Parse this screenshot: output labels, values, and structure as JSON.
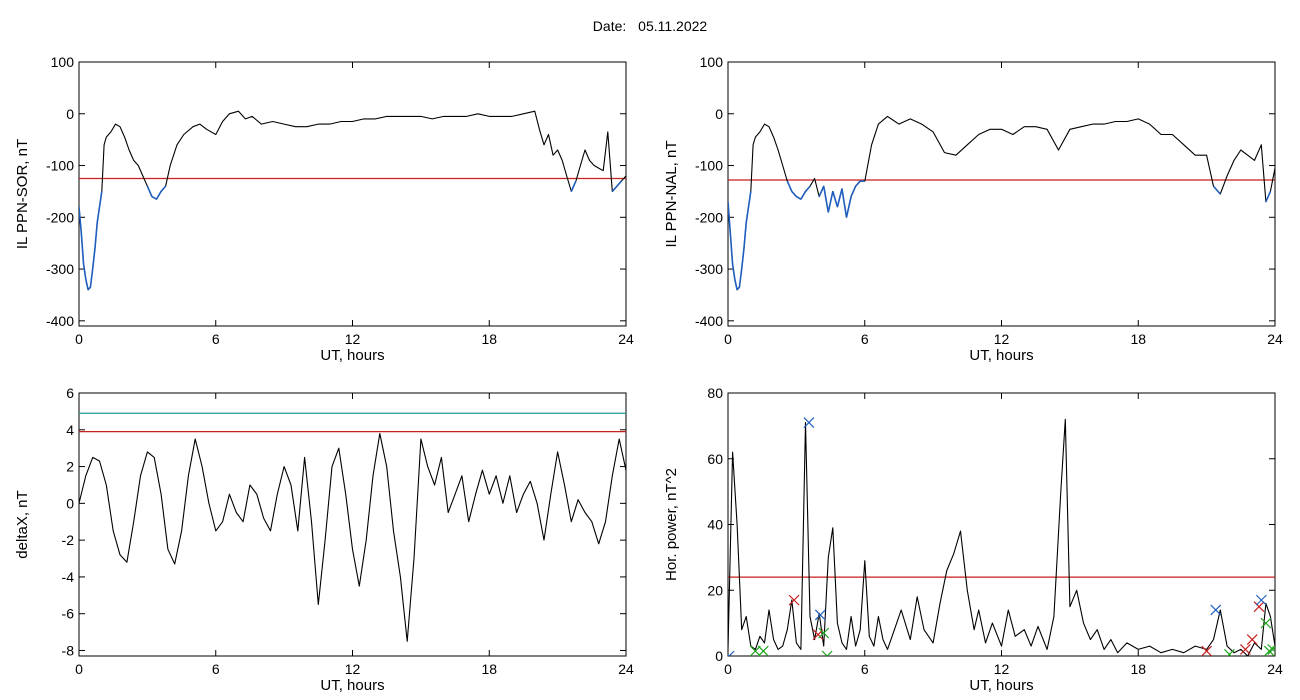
{
  "header": {
    "date_label": "Date:",
    "date_value": "05.11.2022"
  },
  "colors": {
    "trace": "#000000",
    "highlight": "#1f5fbf",
    "threshold": "#c81e1e",
    "teal": "#1a9c9c",
    "green": "#1fa51f"
  },
  "chart_data": [
    {
      "id": "sor",
      "type": "line",
      "xlabel": "UT, hours",
      "ylabel": "IL PPN-SOR, nT",
      "xlim": [
        0,
        24
      ],
      "ylim": [
        -410,
        100
      ],
      "xticks": [
        0,
        6,
        12,
        18,
        24
      ],
      "yticks": [
        100,
        0,
        -100,
        -200,
        -300,
        -400
      ],
      "threshold": -125,
      "series": [
        {
          "x": [
            0,
            0.1,
            0.2,
            0.3,
            0.4,
            0.5,
            0.6,
            0.7,
            0.8,
            0.9,
            1.0,
            1.1,
            1.2,
            1.4,
            1.6,
            1.8,
            2.0,
            2.2,
            2.4,
            2.6,
            2.8,
            3.0,
            3.2,
            3.4,
            3.6,
            3.8,
            4.0,
            4.3,
            4.6,
            5.0,
            5.3,
            5.6,
            6.0,
            6.3,
            6.6,
            7.0,
            7.3,
            7.6,
            8.0,
            8.5,
            9.0,
            9.5,
            10,
            10.5,
            11,
            11.5,
            12,
            12.5,
            13,
            13.5,
            14,
            14.5,
            15,
            15.5,
            16,
            16.5,
            17,
            17.5,
            18,
            18.5,
            19,
            19.5,
            20,
            20.2,
            20.4,
            20.6,
            20.8,
            21.0,
            21.2,
            21.4,
            21.6,
            21.8,
            22.0,
            22.2,
            22.4,
            22.6,
            22.8,
            23.0,
            23.2,
            23.4,
            23.6,
            23.8,
            24
          ],
          "y": [
            -180,
            -230,
            -290,
            -320,
            -340,
            -335,
            -300,
            -260,
            -210,
            -180,
            -150,
            -60,
            -45,
            -35,
            -20,
            -25,
            -45,
            -70,
            -90,
            -100,
            -120,
            -140,
            -160,
            -165,
            -150,
            -140,
            -100,
            -60,
            -40,
            -25,
            -20,
            -30,
            -40,
            -15,
            0,
            5,
            -10,
            -5,
            -20,
            -15,
            -20,
            -25,
            -25,
            -20,
            -20,
            -15,
            -15,
            -10,
            -10,
            -5,
            -5,
            -5,
            -5,
            -10,
            -5,
            -5,
            -5,
            0,
            -5,
            -5,
            -5,
            0,
            5,
            -30,
            -60,
            -40,
            -80,
            -70,
            -90,
            -120,
            -150,
            -130,
            -100,
            -70,
            -90,
            -100,
            -105,
            -110,
            -35,
            -150,
            -140,
            -130,
            -120
          ],
          "below_threshold_color": "highlight"
        }
      ]
    },
    {
      "id": "nal",
      "type": "line",
      "xlabel": "UT, hours",
      "ylabel": "IL PPN-NAL, nT",
      "xlim": [
        0,
        24
      ],
      "ylim": [
        -410,
        100
      ],
      "xticks": [
        0,
        6,
        12,
        18,
        24
      ],
      "yticks": [
        100,
        0,
        -100,
        -200,
        -300,
        -400
      ],
      "threshold": -128,
      "series": [
        {
          "x": [
            0,
            0.1,
            0.2,
            0.3,
            0.4,
            0.5,
            0.6,
            0.7,
            0.8,
            0.9,
            1.0,
            1.1,
            1.2,
            1.4,
            1.6,
            1.8,
            2.0,
            2.2,
            2.4,
            2.6,
            2.8,
            3.0,
            3.2,
            3.4,
            3.6,
            3.8,
            4.0,
            4.2,
            4.4,
            4.6,
            4.8,
            5.0,
            5.2,
            5.4,
            5.6,
            5.8,
            6.0,
            6.3,
            6.6,
            7.0,
            7.5,
            8.0,
            8.5,
            9.0,
            9.5,
            10,
            10.5,
            11,
            11.5,
            12,
            12.5,
            13,
            13.5,
            14,
            14.5,
            15,
            15.5,
            16,
            16.5,
            17,
            17.5,
            18,
            18.5,
            19,
            19.5,
            20,
            20.5,
            21,
            21.3,
            21.6,
            21.9,
            22.2,
            22.5,
            22.8,
            23.1,
            23.4,
            23.6,
            23.8,
            24
          ],
          "y": [
            -170,
            -230,
            -290,
            -320,
            -340,
            -335,
            -300,
            -260,
            -210,
            -180,
            -150,
            -60,
            -45,
            -35,
            -20,
            -25,
            -45,
            -70,
            -100,
            -130,
            -150,
            -160,
            -165,
            -150,
            -140,
            -125,
            -160,
            -140,
            -190,
            -150,
            -180,
            -145,
            -200,
            -160,
            -140,
            -130,
            -130,
            -60,
            -20,
            -5,
            -20,
            -10,
            -20,
            -35,
            -75,
            -80,
            -60,
            -40,
            -30,
            -30,
            -40,
            -25,
            -25,
            -30,
            -70,
            -30,
            -25,
            -20,
            -20,
            -15,
            -15,
            -10,
            -20,
            -40,
            -40,
            -60,
            -80,
            -80,
            -140,
            -155,
            -120,
            -90,
            -70,
            -80,
            -90,
            -60,
            -170,
            -150,
            -105
          ]
        }
      ]
    },
    {
      "id": "deltax",
      "type": "line",
      "xlabel": "UT, hours",
      "ylabel": "deltaX, nT",
      "xlim": [
        0,
        24
      ],
      "ylim": [
        -8.3,
        6
      ],
      "xticks": [
        0,
        6,
        12,
        18,
        24
      ],
      "yticks": [
        6,
        4,
        2,
        0,
        -2,
        -4,
        -6,
        -8
      ],
      "thresholds": [
        {
          "value": 3.9,
          "color": "threshold"
        },
        {
          "value": 4.9,
          "color": "teal"
        }
      ],
      "series": [
        {
          "x": [
            0,
            0.3,
            0.6,
            0.9,
            1.2,
            1.5,
            1.8,
            2.1,
            2.4,
            2.7,
            3.0,
            3.3,
            3.6,
            3.9,
            4.2,
            4.5,
            4.8,
            5.1,
            5.4,
            5.7,
            6.0,
            6.3,
            6.6,
            6.9,
            7.2,
            7.5,
            7.8,
            8.1,
            8.4,
            8.7,
            9.0,
            9.3,
            9.6,
            9.9,
            10.2,
            10.5,
            10.8,
            11.1,
            11.4,
            11.7,
            12.0,
            12.3,
            12.6,
            12.9,
            13.2,
            13.5,
            13.8,
            14.1,
            14.4,
            14.7,
            15.0,
            15.3,
            15.6,
            15.9,
            16.2,
            16.5,
            16.8,
            17.1,
            17.4,
            17.7,
            18.0,
            18.3,
            18.6,
            18.9,
            19.2,
            19.5,
            19.8,
            20.1,
            20.4,
            20.7,
            21.0,
            21.3,
            21.6,
            21.9,
            22.2,
            22.5,
            22.8,
            23.1,
            23.4,
            23.7,
            24
          ],
          "y": [
            0,
            1.5,
            2.5,
            2.3,
            1.0,
            -1.5,
            -2.8,
            -3.2,
            -1.0,
            1.5,
            2.8,
            2.5,
            0.5,
            -2.5,
            -3.3,
            -1.5,
            1.5,
            3.5,
            2.0,
            0.0,
            -1.5,
            -1.0,
            0.5,
            -0.5,
            -1.0,
            1.0,
            0.5,
            -0.8,
            -1.5,
            0.5,
            2.0,
            1.0,
            -1.5,
            2.5,
            -1.0,
            -5.5,
            -2.0,
            2.0,
            3.0,
            0.5,
            -2.5,
            -4.5,
            -2.0,
            1.5,
            3.8,
            2.0,
            -1.5,
            -4.0,
            -7.5,
            -3.0,
            3.5,
            2.0,
            1.0,
            2.5,
            -0.5,
            0.5,
            1.5,
            -1.0,
            0.5,
            1.8,
            0.5,
            1.5,
            0.0,
            1.5,
            -0.5,
            0.5,
            1.2,
            0.0,
            -2.0,
            0.5,
            2.8,
            1.0,
            -1.0,
            0.2,
            -0.5,
            -1.0,
            -2.2,
            -1.0,
            1.5,
            3.5,
            1.8
          ]
        }
      ]
    },
    {
      "id": "hpower",
      "type": "line",
      "xlabel": "UT, hours",
      "ylabel": "Hor. power, nT^2",
      "xlim": [
        0,
        24
      ],
      "ylim": [
        0,
        80
      ],
      "xticks": [
        0,
        6,
        12,
        18,
        24
      ],
      "yticks": [
        80,
        60,
        40,
        20,
        0
      ],
      "threshold": 24,
      "series": [
        {
          "x": [
            0,
            0.2,
            0.4,
            0.6,
            0.8,
            1.0,
            1.2,
            1.4,
            1.6,
            1.8,
            2.0,
            2.2,
            2.4,
            2.6,
            2.8,
            3.0,
            3.2,
            3.4,
            3.6,
            3.8,
            4.0,
            4.2,
            4.4,
            4.6,
            4.8,
            5.0,
            5.2,
            5.4,
            5.6,
            5.8,
            6.0,
            6.2,
            6.4,
            6.6,
            6.8,
            7.0,
            7.3,
            7.6,
            8.0,
            8.3,
            8.6,
            9.0,
            9.3,
            9.6,
            9.9,
            10.2,
            10.5,
            10.8,
            11.0,
            11.3,
            11.6,
            12.0,
            12.3,
            12.6,
            13.0,
            13.3,
            13.6,
            14.0,
            14.3,
            14.6,
            14.8,
            15.0,
            15.3,
            15.6,
            15.9,
            16.2,
            16.5,
            16.8,
            17.1,
            17.5,
            18,
            18.5,
            19,
            19.5,
            20,
            20.5,
            21,
            21.3,
            21.6,
            21.9,
            22.2,
            22.5,
            22.8,
            23.1,
            23.4,
            23.6,
            23.8,
            24
          ],
          "y": [
            2,
            62,
            40,
            8,
            12,
            3,
            2,
            6,
            4,
            14,
            5,
            2,
            3,
            8,
            17,
            4,
            2,
            71,
            12,
            5,
            13,
            3,
            30,
            39,
            10,
            4,
            2,
            12,
            3,
            8,
            29,
            6,
            3,
            12,
            5,
            2,
            8,
            14,
            5,
            18,
            8,
            4,
            16,
            26,
            31,
            38,
            20,
            8,
            14,
            4,
            10,
            3,
            14,
            6,
            8,
            3,
            9,
            2,
            12,
            50,
            72,
            15,
            20,
            10,
            5,
            8,
            2,
            5,
            1,
            4,
            2,
            3,
            1,
            2,
            1,
            3,
            2,
            5,
            14,
            3,
            1,
            2,
            0,
            4,
            2,
            16,
            12,
            3
          ]
        }
      ],
      "markers": [
        {
          "x": 0.05,
          "y": 0,
          "color": "highlight"
        },
        {
          "x": 1.2,
          "y": 1.5,
          "color": "green"
        },
        {
          "x": 1.55,
          "y": 1.5,
          "color": "green"
        },
        {
          "x": 2.9,
          "y": 17,
          "color": "threshold"
        },
        {
          "x": 3.55,
          "y": 71,
          "color": "highlight"
        },
        {
          "x": 3.95,
          "y": 6.5,
          "color": "threshold"
        },
        {
          "x": 4.05,
          "y": 12.5,
          "color": "highlight"
        },
        {
          "x": 4.2,
          "y": 7,
          "color": "green"
        },
        {
          "x": 4.35,
          "y": 0,
          "color": "green"
        },
        {
          "x": 21.0,
          "y": 1.5,
          "color": "threshold"
        },
        {
          "x": 21.4,
          "y": 14,
          "color": "highlight"
        },
        {
          "x": 22.0,
          "y": 0.5,
          "color": "green"
        },
        {
          "x": 22.7,
          "y": 2,
          "color": "threshold"
        },
        {
          "x": 23.0,
          "y": 5,
          "color": "threshold"
        },
        {
          "x": 23.3,
          "y": 15,
          "color": "threshold"
        },
        {
          "x": 23.4,
          "y": 17,
          "color": "highlight"
        },
        {
          "x": 23.6,
          "y": 10,
          "color": "green"
        },
        {
          "x": 23.75,
          "y": 1.5,
          "color": "green"
        },
        {
          "x": 23.9,
          "y": 2,
          "color": "green"
        }
      ]
    }
  ]
}
